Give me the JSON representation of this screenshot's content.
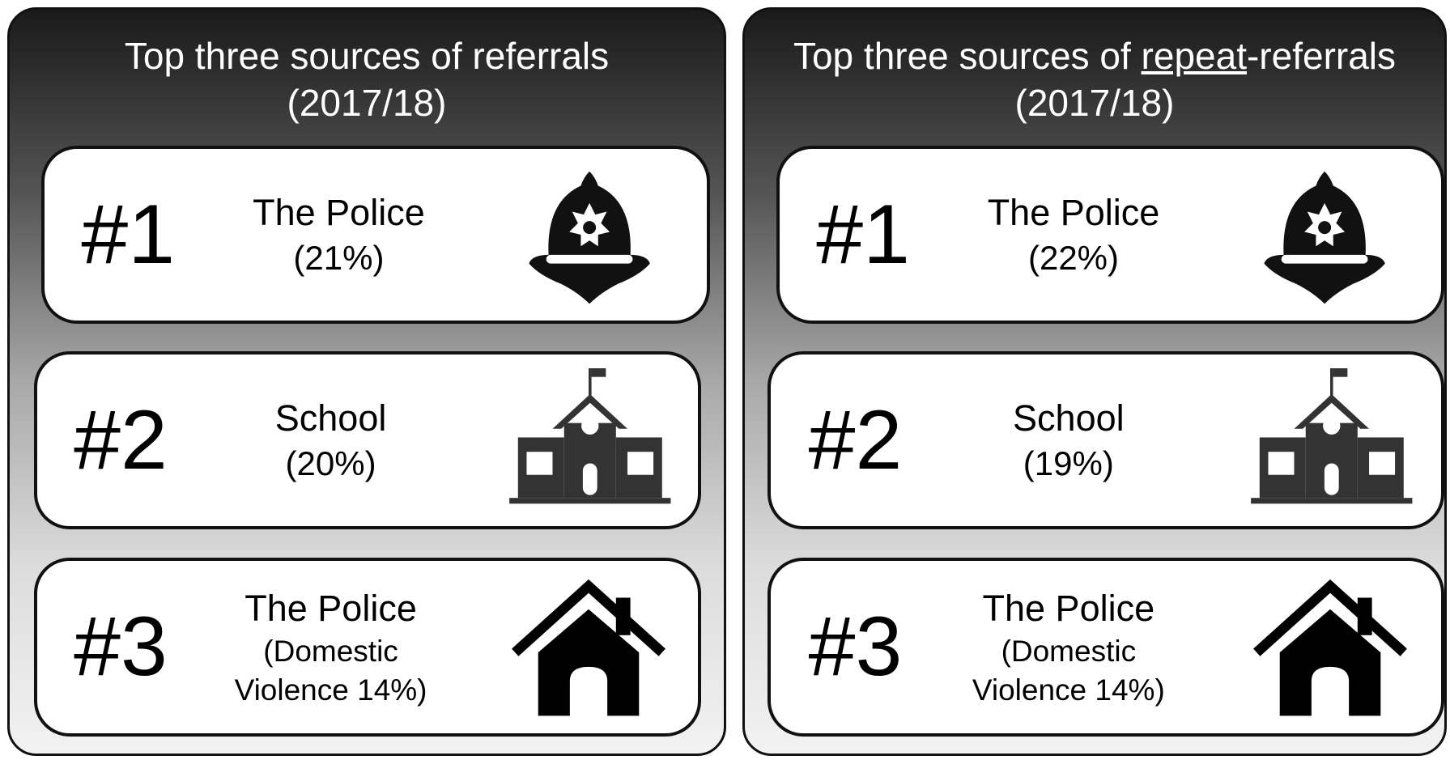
{
  "panels": [
    {
      "title": {
        "text": "Top three sources of referrals",
        "year": "(2017/18)"
      },
      "items": [
        {
          "rank": "#1",
          "lines": [
            "The Police",
            "(21%)"
          ]
        },
        {
          "rank": "#2",
          "lines": [
            "School",
            "(20%)"
          ]
        },
        {
          "rank": "#3",
          "lines": [
            "The Police",
            "(Domestic",
            "Violence 14%)"
          ]
        }
      ]
    },
    {
      "title": {
        "text_start": "Top three sources of ",
        "text_underlined": "repeat",
        "text_end": "-referrals",
        "year": "(2017/18)"
      },
      "items": [
        {
          "rank": "#1",
          "lines": [
            "The Police",
            "(22%)"
          ]
        },
        {
          "rank": "#2",
          "lines": [
            "School",
            "(19%)"
          ]
        },
        {
          "rank": "#3",
          "lines": [
            "The Police",
            "(Domestic",
            "Violence 14%)"
          ]
        }
      ]
    }
  ]
}
